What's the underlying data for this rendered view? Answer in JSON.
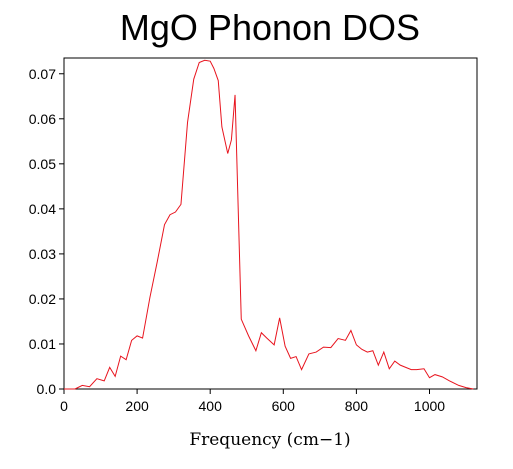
{
  "chart_data": {
    "type": "line",
    "title": "MgO Phonon DOS",
    "xlabel": "Frequency (cm−1)",
    "ylabel": "",
    "xlim": [
      0,
      1130
    ],
    "ylim": [
      0,
      0.0735
    ],
    "xticks": [
      0,
      200,
      400,
      600,
      800,
      1000
    ],
    "xtick_labels": [
      "0",
      "200",
      "400",
      "600",
      "800",
      "1000"
    ],
    "yticks": [
      0.0,
      0.01,
      0.02,
      0.03,
      0.04,
      0.05,
      0.06,
      0.07
    ],
    "ytick_labels": [
      "0.0",
      "0.01",
      "0.02",
      "0.03",
      "0.04",
      "0.05",
      "0.06",
      "0.07"
    ],
    "grid": false,
    "line_color": "#e8141e",
    "series": [
      {
        "x": [
          0,
          30,
          50,
          70,
          90,
          110,
          125,
          140,
          155,
          170,
          185,
          200,
          215,
          235,
          255,
          275,
          290,
          305,
          320,
          338,
          355,
          370,
          385,
          400,
          410,
          422,
          432,
          448,
          458,
          468,
          485,
          505,
          525,
          540,
          555,
          575,
          590,
          605,
          620,
          635,
          650,
          670,
          690,
          710,
          730,
          750,
          770,
          785,
          800,
          815,
          830,
          845,
          860,
          875,
          890,
          905,
          920,
          935,
          950,
          965,
          985,
          1000,
          1015,
          1035,
          1055,
          1080,
          1100,
          1120
        ],
        "y": [
          0.0,
          0.0,
          0.0008,
          0.0005,
          0.0023,
          0.0018,
          0.0048,
          0.0028,
          0.0073,
          0.0065,
          0.0108,
          0.0118,
          0.0113,
          0.0203,
          0.0282,
          0.0365,
          0.0387,
          0.0393,
          0.041,
          0.0592,
          0.0688,
          0.0725,
          0.073,
          0.0728,
          0.0712,
          0.0685,
          0.0582,
          0.0523,
          0.0553,
          0.0653,
          0.0155,
          0.0118,
          0.0085,
          0.0125,
          0.0113,
          0.0098,
          0.0158,
          0.0095,
          0.0068,
          0.0072,
          0.0043,
          0.0078,
          0.0082,
          0.0093,
          0.0092,
          0.0112,
          0.0108,
          0.013,
          0.0098,
          0.0088,
          0.0082,
          0.0085,
          0.0053,
          0.0082,
          0.0045,
          0.0062,
          0.0053,
          0.0048,
          0.0043,
          0.0043,
          0.0045,
          0.0025,
          0.0032,
          0.0027,
          0.0018,
          0.0008,
          0.0003,
          0.0
        ]
      }
    ]
  }
}
